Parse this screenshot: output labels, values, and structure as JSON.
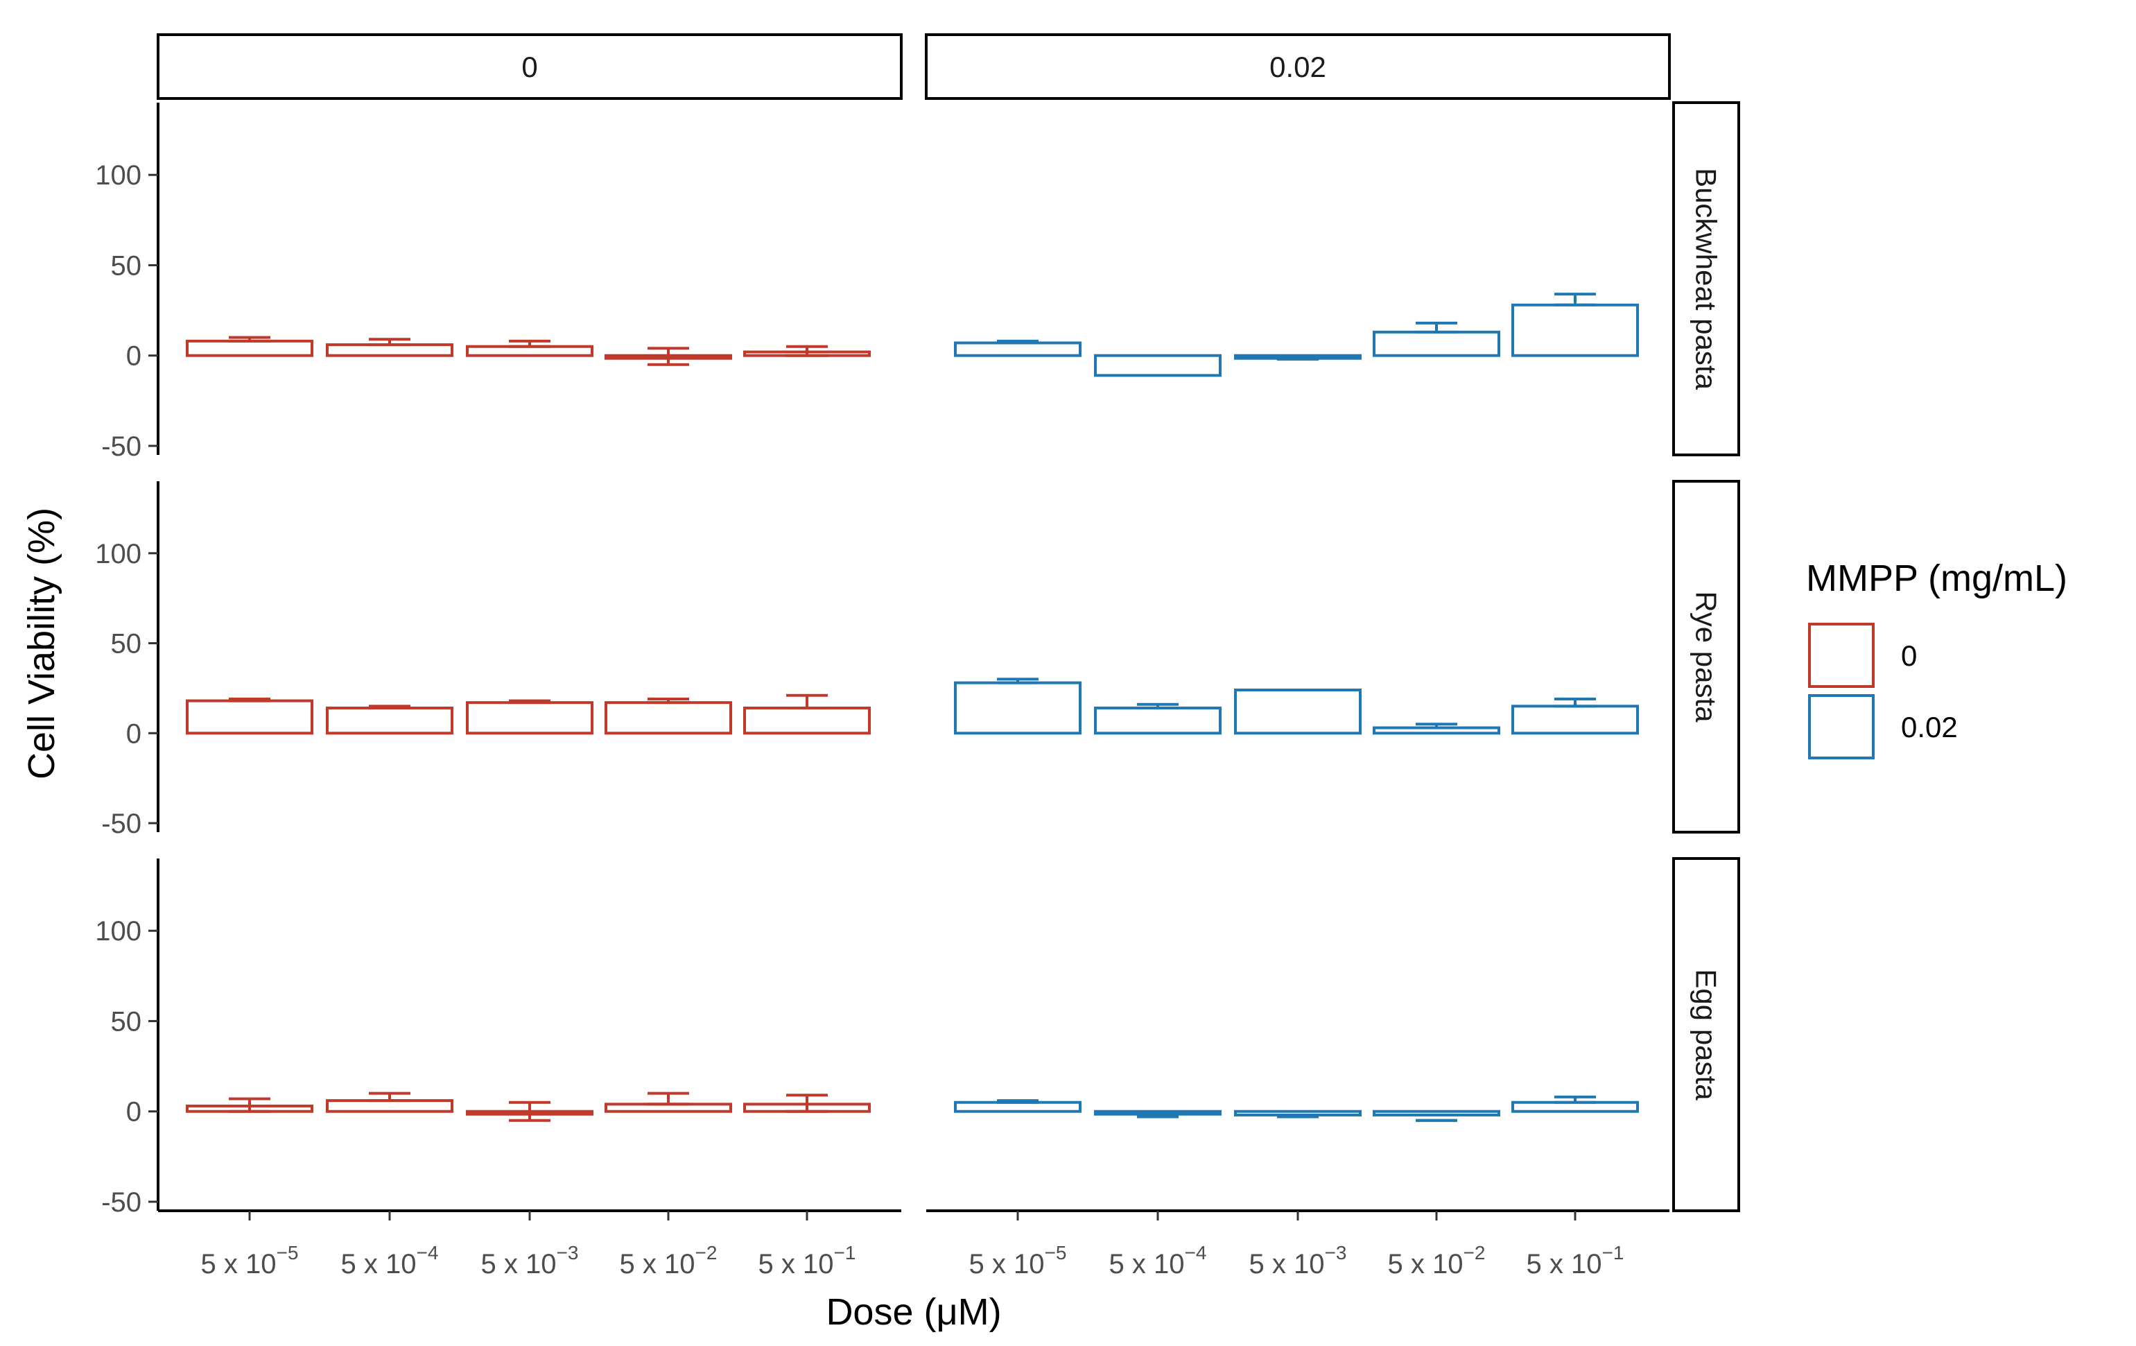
{
  "chart_data": {
    "type": "bar",
    "y_label": "Cell Viability (%)",
    "x_label": "Dose (μM)",
    "y_ticks": [
      "100",
      "50",
      "0",
      "-50"
    ],
    "y_tick_values": [
      100,
      50,
      0,
      -50
    ],
    "ylim": [
      -55,
      140
    ],
    "categories": [
      {
        "base": "5 x 10",
        "exp": "−5"
      },
      {
        "base": "5 x 10",
        "exp": "−4"
      },
      {
        "base": "5 x 10",
        "exp": "−3"
      },
      {
        "base": "5 x 10",
        "exp": "−2"
      },
      {
        "base": "5 x 10",
        "exp": "−1"
      }
    ],
    "legend": {
      "title": "MMPP (mg/mL)",
      "entries": [
        {
          "label": "0",
          "color": "#c0392b"
        },
        {
          "label": "0.02",
          "color": "#1f77b4"
        }
      ]
    },
    "facet_cols": [
      {
        "label": "0",
        "series": "0"
      },
      {
        "label": "0.02",
        "series": "0.02"
      }
    ],
    "facet_rows": [
      {
        "label": "Buckwheat pasta",
        "panels": [
          {
            "values": [
              8,
              6,
              5,
              0,
              2
            ],
            "err_low": [
              8,
              6,
              5,
              -5,
              0
            ],
            "err_high": [
              10,
              9,
              8,
              4,
              5
            ]
          },
          {
            "values": [
              7,
              -11,
              -1,
              13,
              28
            ],
            "err_low": [
              7,
              -11,
              -2,
              13,
              28
            ],
            "err_high": [
              8,
              -11,
              -2,
              18,
              34
            ]
          }
        ]
      },
      {
        "label": "Rye pasta",
        "panels": [
          {
            "values": [
              18,
              14,
              17,
              17,
              14
            ],
            "err_low": [
              18,
              14,
              17,
              17,
              14
            ],
            "err_high": [
              19,
              15,
              18,
              19,
              21
            ]
          },
          {
            "values": [
              28,
              14,
              24,
              3,
              15
            ],
            "err_low": [
              28,
              14,
              24,
              3,
              15
            ],
            "err_high": [
              30,
              16,
              24,
              5,
              19
            ]
          }
        ]
      },
      {
        "label": "Egg pasta",
        "panels": [
          {
            "values": [
              3,
              6,
              0,
              4,
              4
            ],
            "err_low": [
              0,
              6,
              -5,
              4,
              0
            ],
            "err_high": [
              7,
              10,
              5,
              10,
              9
            ]
          },
          {
            "values": [
              5,
              -1,
              -2,
              -2,
              5
            ],
            "err_low": [
              5,
              -3,
              -3,
              -5,
              5
            ],
            "err_high": [
              6,
              -3,
              -3,
              -5,
              8
            ]
          }
        ]
      }
    ]
  }
}
